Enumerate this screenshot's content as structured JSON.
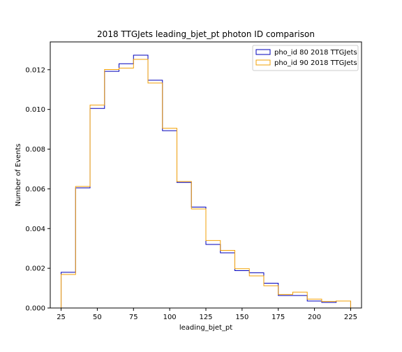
{
  "chart_data": {
    "type": "step-histogram",
    "title": "2018 TTGJets leading_bjet_pt photon ID comparison",
    "xlabel": "leading_bjet_pt",
    "ylabel": "Number of Events",
    "xlim": [
      17.5,
      232.5
    ],
    "ylim": [
      0,
      0.0134
    ],
    "xticks": [
      25,
      50,
      75,
      100,
      125,
      150,
      175,
      200,
      225
    ],
    "yticks": [
      0.0,
      0.002,
      0.004,
      0.006,
      0.008,
      0.01,
      0.012
    ],
    "ytick_labels": [
      "0.000",
      "0.002",
      "0.004",
      "0.006",
      "0.008",
      "0.010",
      "0.012"
    ],
    "bin_edges": [
      25,
      35,
      45,
      55,
      65,
      75,
      85,
      95,
      105,
      115,
      125,
      135,
      145,
      155,
      165,
      175,
      185,
      195,
      205,
      215,
      225
    ],
    "legend_position": "top-right",
    "grid": false,
    "series": [
      {
        "name": "pho_id 80 2018 TTGJets",
        "color": "#0000bb",
        "values": [
          0.0018,
          0.00605,
          0.01005,
          0.01192,
          0.0123,
          0.01273,
          0.01147,
          0.00893,
          0.00632,
          0.00508,
          0.0032,
          0.00278,
          0.00188,
          0.00177,
          0.00125,
          0.00063,
          0.00063,
          0.00035,
          0.00028,
          0.00035
        ]
      },
      {
        "name": "pho_id 90 2018 TTGJets",
        "color": "#f2a007",
        "values": [
          0.00169,
          0.00612,
          0.01022,
          0.01201,
          0.01208,
          0.01252,
          0.01133,
          0.00905,
          0.00637,
          0.00499,
          0.0034,
          0.0029,
          0.00198,
          0.00162,
          0.00112,
          0.00068,
          0.0008,
          0.00045,
          0.00033,
          0.00035
        ]
      }
    ]
  }
}
